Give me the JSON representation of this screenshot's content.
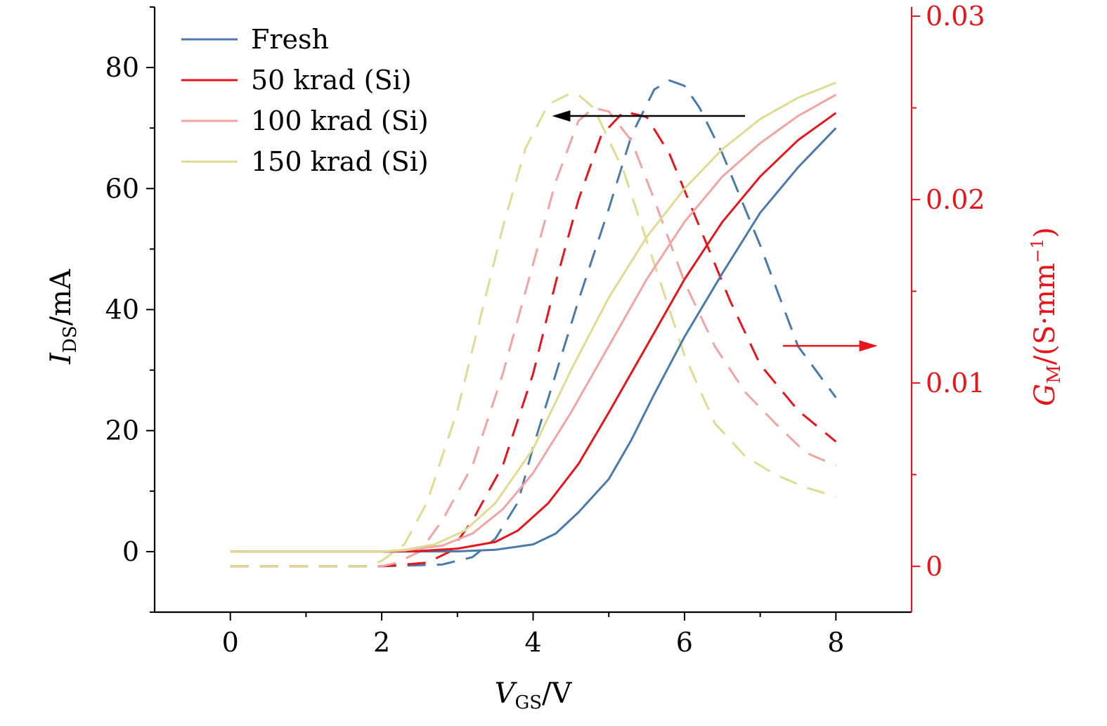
{
  "chart_data": {
    "type": "line",
    "xlabel": {
      "var": "V",
      "sub": "GS",
      "unit": "/V"
    },
    "ylabel_left": {
      "var": "I",
      "sub": "DS",
      "unit": "/mA"
    },
    "ylabel_right": {
      "var": "G",
      "sub": "M",
      "unit": "/(S·mm",
      "sup": "−1",
      "close": ")"
    },
    "xlim": [
      -1,
      9
    ],
    "ylim_left": [
      -10,
      90
    ],
    "ylim_right": [
      -0.0025,
      0.0305
    ],
    "x_ticks": [
      0,
      2,
      4,
      6,
      8
    ],
    "y_ticks_left": [
      0,
      20,
      40,
      60,
      80
    ],
    "y_ticks_right": [
      0,
      0.01,
      0.02,
      0.03
    ],
    "x_tick_labels": [
      "0",
      "2",
      "4",
      "6",
      "8"
    ],
    "y_tick_labels_left": [
      "0",
      "20",
      "40",
      "60",
      "80"
    ],
    "y_tick_labels_right": [
      "0",
      "0.01",
      "0.02",
      "0.03"
    ],
    "right_axis_color": "#e8141c",
    "legend": {
      "position": "top-left"
    },
    "annotations": [
      {
        "type": "arrow",
        "direction": "left",
        "color": "#000000",
        "x_from": 6.8,
        "x_to": 4.25,
        "y_left": 72
      },
      {
        "type": "arrow",
        "direction": "right",
        "color": "#e8141c",
        "x_from": 7.3,
        "x_to": 8.55,
        "y_left": 34
      }
    ],
    "series": [
      {
        "name": "Fresh",
        "color": "#4a7aab",
        "ids": {
          "x": [
            0,
            1,
            2,
            3,
            3.5,
            4,
            4.3,
            4.6,
            5,
            5.3,
            5.6,
            6,
            6.5,
            7,
            7.5,
            8
          ],
          "y": [
            0,
            0,
            0,
            0.05,
            0.3,
            1.2,
            3,
            6.5,
            12,
            18.5,
            26,
            35.5,
            46,
            56,
            63.5,
            70
          ]
        },
        "gm": {
          "x": [
            0,
            1,
            2,
            2.8,
            3.2,
            3.5,
            3.8,
            4,
            4.3,
            4.6,
            5,
            5.3,
            5.6,
            5.8,
            6,
            6.2,
            6.5,
            7,
            7.5,
            8
          ],
          "y": [
            0,
            0,
            0,
            0.0001,
            0.0005,
            0.0015,
            0.0035,
            0.0065,
            0.0105,
            0.0145,
            0.0195,
            0.0235,
            0.026,
            0.0265,
            0.0262,
            0.025,
            0.0225,
            0.0175,
            0.012,
            0.0092
          ]
        }
      },
      {
        "name": "50 krad (Si)",
        "color": "#e8141c",
        "ids": {
          "x": [
            0,
            1,
            2,
            2.5,
            3,
            3.5,
            3.8,
            4.2,
            4.6,
            5,
            5.5,
            6,
            6.5,
            7,
            7.5,
            8
          ],
          "y": [
            0,
            0,
            0,
            0.1,
            0.5,
            1.6,
            3.5,
            8,
            14.5,
            23,
            34,
            45,
            54.5,
            62,
            68,
            72.5
          ]
        },
        "gm": {
          "x": [
            0,
            1,
            2,
            2.6,
            2.9,
            3.2,
            3.6,
            4,
            4.3,
            4.6,
            4.9,
            5.2,
            5.5,
            5.8,
            6.2,
            6.6,
            7,
            7.5,
            8
          ],
          "y": [
            0,
            0,
            0,
            0.0002,
            0.0008,
            0.0025,
            0.0055,
            0.0105,
            0.0155,
            0.02,
            0.0235,
            0.0248,
            0.0245,
            0.0225,
            0.0185,
            0.0145,
            0.011,
            0.0085,
            0.0068
          ]
        }
      },
      {
        "name": "100 krad (Si)",
        "color": "#f2a3a3",
        "ids": {
          "x": [
            0,
            1,
            2,
            2.3,
            2.8,
            3.2,
            3.6,
            4,
            4.5,
            5,
            5.5,
            6,
            6.5,
            7,
            7.5,
            8
          ],
          "y": [
            0,
            0,
            0,
            0.2,
            1,
            3,
            7,
            13,
            23,
            34,
            45,
            54.5,
            62,
            67.5,
            72,
            75.5
          ]
        },
        "gm": {
          "x": [
            0,
            1,
            2,
            2.2,
            2.5,
            2.8,
            3.2,
            3.6,
            4,
            4.3,
            4.6,
            4.8,
            5,
            5.3,
            5.6,
            6,
            6.4,
            6.8,
            7.2,
            7.6,
            8
          ],
          "y": [
            0,
            0,
            0,
            0.0002,
            0.0008,
            0.0025,
            0.0055,
            0.0105,
            0.0165,
            0.021,
            0.0243,
            0.025,
            0.0248,
            0.0232,
            0.02,
            0.0155,
            0.012,
            0.0095,
            0.0078,
            0.0062,
            0.0055
          ]
        }
      },
      {
        "name": "150 krad (Si)",
        "color": "#dedc93",
        "ids": {
          "x": [
            0,
            1,
            2,
            2.3,
            2.7,
            3.1,
            3.5,
            4,
            4.5,
            5,
            5.5,
            6,
            6.5,
            7,
            7.5,
            8
          ],
          "y": [
            0,
            0,
            0,
            0.3,
            1.2,
            3.5,
            8,
            17,
            30,
            42,
            52,
            60,
            66.5,
            71.5,
            75,
            77.5
          ]
        },
        "gm": {
          "x": [
            0,
            1,
            1.8,
            2,
            2.3,
            2.6,
            3,
            3.3,
            3.6,
            3.9,
            4.2,
            4.5,
            4.6,
            4.8,
            5.2,
            5.6,
            6,
            6.4,
            6.8,
            7.2,
            7.6,
            8
          ],
          "y": [
            0,
            0,
            0,
            0.0003,
            0.0012,
            0.0035,
            0.0085,
            0.0135,
            0.0185,
            0.0228,
            0.0252,
            0.0258,
            0.0257,
            0.025,
            0.0215,
            0.0165,
            0.0115,
            0.0078,
            0.006,
            0.005,
            0.0043,
            0.0038
          ]
        }
      }
    ]
  }
}
